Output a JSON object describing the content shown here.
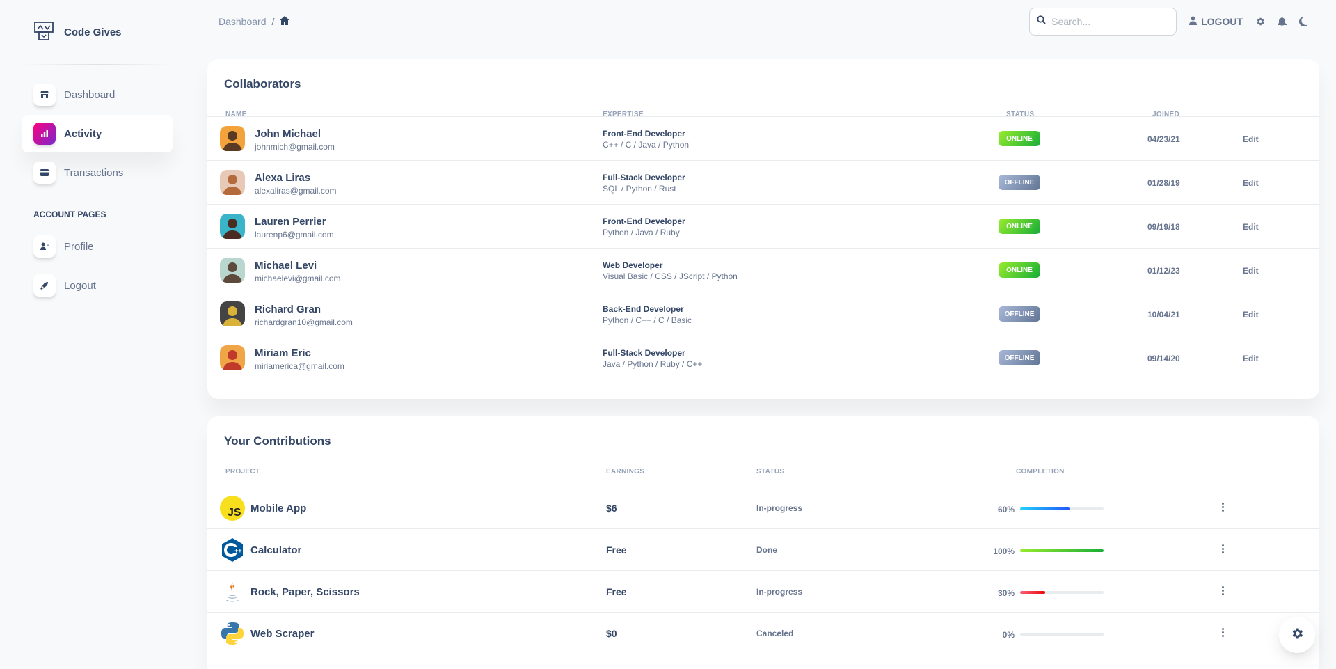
{
  "brand": {
    "name": "Code Gives"
  },
  "sidebar": {
    "items": [
      {
        "label": "Dashboard",
        "icon": "shop-icon"
      },
      {
        "label": "Activity",
        "icon": "chart-bar-icon",
        "active": true
      },
      {
        "label": "Transactions",
        "icon": "credit-card-icon"
      }
    ],
    "section_label": "ACCOUNT PAGES",
    "account_items": [
      {
        "label": "Profile",
        "icon": "user-icon"
      },
      {
        "label": "Logout",
        "icon": "rocket-icon"
      }
    ]
  },
  "header": {
    "breadcrumb": "Dashboard",
    "breadcrumb_sep": "/",
    "search_placeholder": "Search...",
    "logout_label": "LOGOUT"
  },
  "collaborators": {
    "title": "Collaborators",
    "columns": {
      "name": "NAME",
      "expertise": "EXPERTISE",
      "status": "STATUS",
      "joined": "JOINED"
    },
    "edit_label": "Edit",
    "rows": [
      {
        "name": "John Michael",
        "email": "johnmich@gmail.com",
        "role": "Front-End Developer",
        "skills": "C++ / C / Java / Python",
        "status": "ONLINE",
        "joined": "04/23/21"
      },
      {
        "name": "Alexa Liras",
        "email": "alexaliras@gmail.com",
        "role": "Full-Stack Developer",
        "skills": "SQL / Python / Rust",
        "status": "OFFLINE",
        "joined": "01/28/19"
      },
      {
        "name": "Lauren Perrier",
        "email": "laurenp6@gmail.com",
        "role": "Front-End Developer",
        "skills": "Python / Java / Ruby",
        "status": "ONLINE",
        "joined": "09/19/18"
      },
      {
        "name": "Michael Levi",
        "email": "michaelevi@gmail.com",
        "role": "Web Developer",
        "skills": "Visual Basic / CSS / JScript / Python",
        "status": "ONLINE",
        "joined": "01/12/23"
      },
      {
        "name": "Richard Gran",
        "email": "richardgran10@gmail.com",
        "role": "Back-End Developer",
        "skills": "Python / C++ / C / Basic",
        "status": "OFFLINE",
        "joined": "10/04/21"
      },
      {
        "name": "Miriam Eric",
        "email": "miriamerica@gmail.com",
        "role": "Full-Stack Developer",
        "skills": "Java / Python / Ruby / C++",
        "status": "OFFLINE",
        "joined": "09/14/20"
      }
    ]
  },
  "contributions": {
    "title": "Your Contributions",
    "columns": {
      "project": "PROJECT",
      "earnings": "EARNINGS",
      "status": "STATUS",
      "completion": "COMPLETION"
    },
    "rows": [
      {
        "project": "Mobile App",
        "logo": "javascript-logo-icon",
        "earnings": "$6",
        "status": "In-progress",
        "completion": 60,
        "completion_label": "60%",
        "bar_color": "#1171ef"
      },
      {
        "project": "Calculator",
        "logo": "c-plus-plus-logo-icon",
        "earnings": "Free",
        "status": "Done",
        "completion": 100,
        "completion_label": "100%",
        "bar_color": "#17ad37"
      },
      {
        "project": "Rock, Paper, Scissors",
        "logo": "java-logo-icon",
        "earnings": "Free",
        "status": "In-progress",
        "completion": 30,
        "completion_label": "30%",
        "bar_color": "#ea0606"
      },
      {
        "project": "Web Scraper",
        "logo": "python-logo-icon",
        "earnings": "$0",
        "status": "Canceled",
        "completion": 0,
        "completion_label": "0%",
        "bar_color": "#8392ab"
      }
    ]
  },
  "colors": {
    "accent_gradient_start": "#7928ca",
    "accent_gradient_end": "#ff0080",
    "online": "#17ad37",
    "offline": "#627594"
  }
}
